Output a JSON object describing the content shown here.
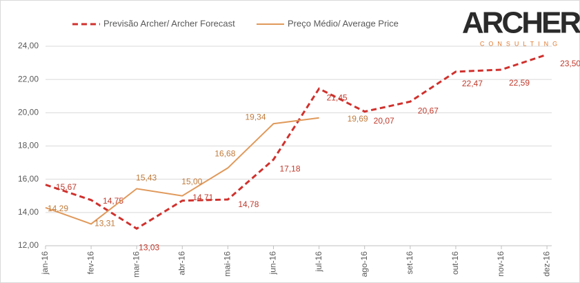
{
  "chart_data": {
    "type": "line",
    "categories": [
      "jan-16",
      "fev-16",
      "mar-16",
      "abr-16",
      "mai-16",
      "jun-16",
      "jul-16",
      "ago-16",
      "set-16",
      "out-16",
      "nov-16",
      "dez-16"
    ],
    "series": [
      {
        "name": "Previsão Archer/ Archer Forecast",
        "color": "#d0312d",
        "dashed": true,
        "values": [
          15.67,
          14.75,
          13.03,
          14.71,
          14.78,
          17.18,
          21.45,
          20.07,
          20.67,
          22.47,
          22.59,
          23.5
        ],
        "value_labels": [
          "15,67",
          "14,75",
          "13,03",
          "14,71",
          "14,78",
          "17,18",
          "21,45",
          "20,07",
          "20,67",
          "22,47",
          "22,59",
          "23,50"
        ]
      },
      {
        "name": "Preço Médio/ Average Price",
        "color": "#e0995a",
        "dashed": false,
        "values": [
          14.29,
          13.31,
          15.43,
          15.0,
          16.68,
          19.34,
          19.69,
          null,
          null,
          null,
          null,
          null
        ],
        "value_labels": [
          "14,29",
          "13,31",
          "15,43",
          "15,00",
          "16,68",
          "19,34",
          "19,69",
          null,
          null,
          null,
          null,
          null
        ]
      }
    ],
    "ylim": [
      12,
      24
    ],
    "yticks": [
      {
        "value": 12,
        "label": "12,00"
      },
      {
        "value": 14,
        "label": "14,00"
      },
      {
        "value": 16,
        "label": "16,00"
      },
      {
        "value": 18,
        "label": "18,00"
      },
      {
        "value": 20,
        "label": "20,00"
      },
      {
        "value": 22,
        "label": "22,00"
      },
      {
        "value": 24,
        "label": "24,00"
      }
    ],
    "grid": true,
    "legend": "top",
    "logo": {
      "text": "ARCHER",
      "subtitle": "CONSULTING"
    }
  }
}
